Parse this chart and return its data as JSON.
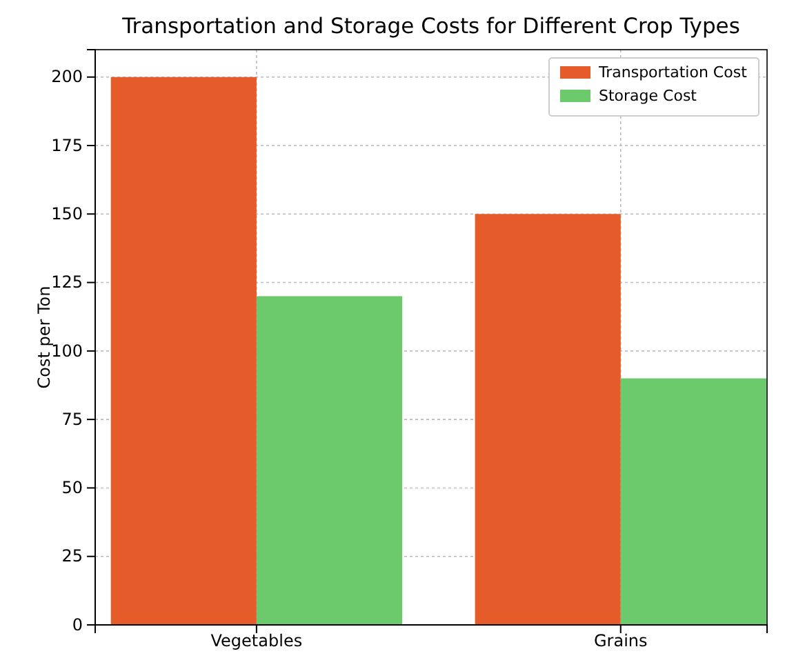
{
  "chart_data": {
    "type": "bar",
    "title": "Transportation and Storage Costs for Different Crop Types",
    "ylabel": "Cost per Ton",
    "categories": [
      "Vegetables",
      "Grains"
    ],
    "series": [
      {
        "name": "Transportation Cost",
        "color": "#e55b2a",
        "values": [
          200,
          150
        ]
      },
      {
        "name": "Storage Cost",
        "color": "#6cc96c",
        "values": [
          120,
          90
        ]
      }
    ],
    "ylim": [
      0,
      210
    ],
    "yticks": [
      0,
      25,
      50,
      75,
      100,
      125,
      150,
      175,
      200
    ],
    "grid": true,
    "legend": "top right"
  }
}
